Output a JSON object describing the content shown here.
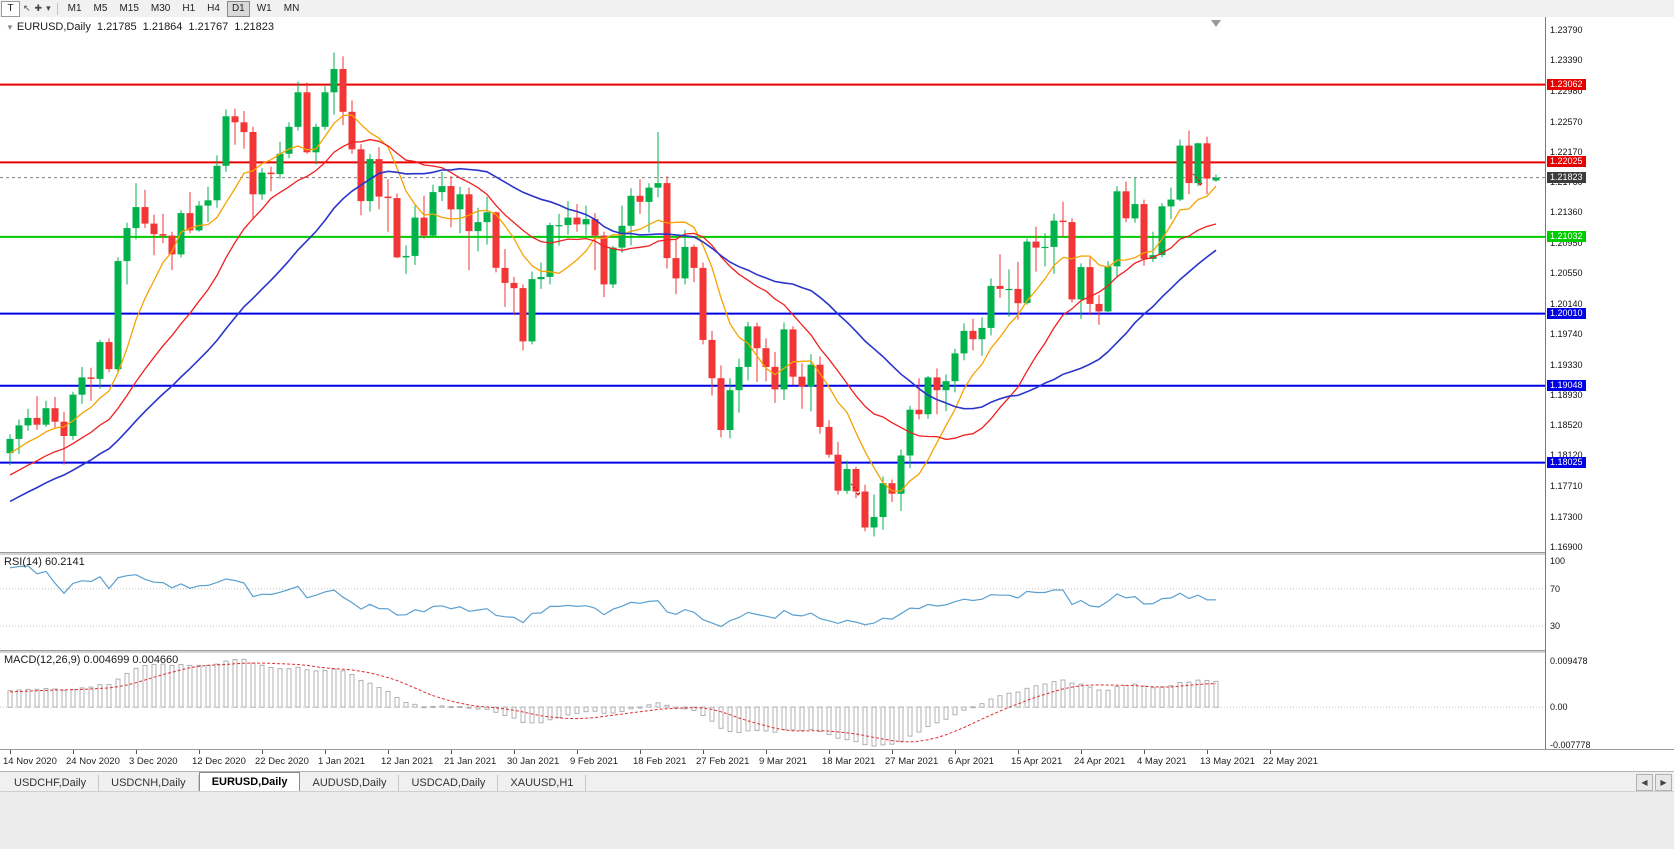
{
  "theme": {
    "up_color": "#00B14C",
    "down_color": "#F23535",
    "rsi_color": "#5BA0D0",
    "macd_signal": "#E03030",
    "macd_bar": "#A8A8A8",
    "current_line": "#808080",
    "current_box": "#3C3C3C"
  },
  "toolbar": {
    "tool_letter": "T",
    "cursor_glyph": "↖",
    "crosshair_glyph": "✚",
    "dropdown_glyph": "▾",
    "timeframes": [
      "M1",
      "M5",
      "M15",
      "M30",
      "H1",
      "H4",
      "D1",
      "W1",
      "MN"
    ],
    "active_timeframe": "D1"
  },
  "chart": {
    "header": {
      "collapse_glyph": "▼",
      "symbol": "EURUSD,Daily",
      "open": "1.21785",
      "high": "1.21864",
      "low": "1.21767",
      "close": "1.21823"
    },
    "shift_marker_glyph": "▽",
    "price_axis": [
      "1.23790",
      "1.23390",
      "1.22980",
      "1.22570",
      "1.22170",
      "1.21760",
      "1.21360",
      "1.20950",
      "1.20550",
      "1.20140",
      "1.19740",
      "1.19330",
      "1.18930",
      "1.18520",
      "1.18120",
      "1.17710",
      "1.17300",
      "1.16900"
    ],
    "current_price": {
      "label": "1.21823",
      "value": 1.21823
    },
    "date_axis": [
      "14 Nov 2020",
      "24 Nov 2020",
      "3 Dec 2020",
      "12 Dec 2020",
      "22 Dec 2020",
      "1 Jan 2021",
      "12 Jan 2021",
      "21 Jan 2021",
      "30 Jan 2021",
      "9 Feb 2021",
      "18 Feb 2021",
      "27 Feb 2021",
      "9 Mar 2021",
      "18 Mar 2021",
      "27 Mar 2021",
      "6 Apr 2021",
      "15 Apr 2021",
      "24 Apr 2021",
      "4 May 2021",
      "13 May 2021",
      "22 May 2021"
    ]
  },
  "rsi": {
    "title": "RSI(14) 60.2141",
    "scale": [
      {
        "label": "100",
        "value": 100
      },
      {
        "label": "70",
        "value": 70
      },
      {
        "label": "30",
        "value": 30
      }
    ],
    "levels": [
      70,
      30
    ]
  },
  "macd": {
    "title": "MACD(12,26,9) 0.004699 0.004660",
    "scale": [
      {
        "label": "0.009478",
        "value": 0.009478
      },
      {
        "label": "0.00",
        "value": 0
      },
      {
        "label": "-0.007778",
        "value": -0.007778
      }
    ]
  },
  "tabs": {
    "scroll_left": "◀",
    "scroll_right": "▶",
    "items": [
      {
        "label": "USDCHF,Daily",
        "active": false
      },
      {
        "label": "USDCNH,Daily",
        "active": false
      },
      {
        "label": "EURUSD,Daily",
        "active": true
      },
      {
        "label": "AUDUSD,Daily",
        "active": false
      },
      {
        "label": "USDCAD,Daily",
        "active": false
      },
      {
        "label": "XAUUSD,H1",
        "active": false
      }
    ]
  },
  "chart_data": {
    "type": "candlestick",
    "symbol": "EURUSD",
    "timeframe": "Daily",
    "price_range": [
      1.169,
      1.2379
    ],
    "horizontal_levels": [
      {
        "label": "1.23062",
        "price": 1.23062,
        "color": "#E60000"
      },
      {
        "label": "1.22025",
        "price": 1.22025,
        "color": "#E60000"
      },
      {
        "label": "1.21032",
        "price": 1.21032,
        "color": "#00CC00"
      },
      {
        "label": "1.20010",
        "price": 1.2001,
        "color": "#0000E6"
      },
      {
        "label": "1.19048",
        "price": 1.19048,
        "color": "#0000E6"
      },
      {
        "label": "1.18025",
        "price": 1.18025,
        "color": "#0000E6"
      }
    ],
    "moving_averages": [
      {
        "period": 8,
        "color": "#F5A300",
        "width": 1.3
      },
      {
        "period": 18,
        "color": "#F02020",
        "width": 1.3
      },
      {
        "period": 30,
        "color": "#2A35CC",
        "width": 1.6
      }
    ],
    "indicators": [
      {
        "name": "RSI",
        "period": 14,
        "value": 60.2141
      },
      {
        "name": "MACD",
        "params": "12,26,9",
        "values": [
          0.004699,
          0.00466
        ]
      }
    ],
    "trade_markers": [
      {
        "index": 94,
        "price": 1.1765
      },
      {
        "index": 132,
        "price": 1.2178
      }
    ],
    "ohlc": [
      [
        1.1815,
        1.184,
        1.1799,
        1.1834
      ],
      [
        1.1834,
        1.186,
        1.1814,
        1.1852
      ],
      [
        1.1852,
        1.1874,
        1.1845,
        1.1862
      ],
      [
        1.1862,
        1.1891,
        1.1846,
        1.1853
      ],
      [
        1.1853,
        1.1885,
        1.185,
        1.1875
      ],
      [
        1.1875,
        1.189,
        1.1849,
        1.1857
      ],
      [
        1.1857,
        1.187,
        1.18,
        1.1838
      ],
      [
        1.1838,
        1.1897,
        1.1833,
        1.1893
      ],
      [
        1.1893,
        1.193,
        1.1881,
        1.1916
      ],
      [
        1.1916,
        1.1929,
        1.1885,
        1.1914
      ],
      [
        1.1914,
        1.1966,
        1.1901,
        1.1963
      ],
      [
        1.1963,
        1.1968,
        1.1923,
        1.1927
      ],
      [
        1.1927,
        1.2076,
        1.1923,
        1.2071
      ],
      [
        1.2071,
        1.2122,
        1.204,
        1.2115
      ],
      [
        1.2115,
        1.2175,
        1.21,
        1.2143
      ],
      [
        1.2143,
        1.2166,
        1.2115,
        1.2121
      ],
      [
        1.2121,
        1.2133,
        1.2079,
        1.2107
      ],
      [
        1.2107,
        1.2134,
        1.2095,
        1.2105
      ],
      [
        1.2105,
        1.211,
        1.2059,
        1.208
      ],
      [
        1.208,
        1.2139,
        1.2076,
        1.2135
      ],
      [
        1.2135,
        1.2163,
        1.2108,
        1.2112
      ],
      [
        1.2112,
        1.2151,
        1.211,
        1.2145
      ],
      [
        1.2145,
        1.217,
        1.2123,
        1.2152
      ],
      [
        1.2152,
        1.2212,
        1.2142,
        1.2198
      ],
      [
        1.2198,
        1.2273,
        1.219,
        1.2264
      ],
      [
        1.2264,
        1.2274,
        1.2226,
        1.2256
      ],
      [
        1.2256,
        1.2271,
        1.2221,
        1.2243
      ],
      [
        1.2243,
        1.225,
        1.2129,
        1.216
      ],
      [
        1.216,
        1.2195,
        1.2153,
        1.2189
      ],
      [
        1.2189,
        1.2197,
        1.2164,
        1.2187
      ],
      [
        1.2187,
        1.223,
        1.2181,
        1.2214
      ],
      [
        1.2214,
        1.2256,
        1.2208,
        1.225
      ],
      [
        1.225,
        1.231,
        1.2245,
        1.2296
      ],
      [
        1.2296,
        1.2309,
        1.2214,
        1.2216
      ],
      [
        1.2216,
        1.2254,
        1.22,
        1.225
      ],
      [
        1.225,
        1.2304,
        1.2246,
        1.2296
      ],
      [
        1.2296,
        1.2349,
        1.2266,
        1.2327
      ],
      [
        1.2327,
        1.2344,
        1.2252,
        1.227
      ],
      [
        1.227,
        1.2285,
        1.2214,
        1.222
      ],
      [
        1.222,
        1.2227,
        1.2132,
        1.2151
      ],
      [
        1.2151,
        1.2214,
        1.2137,
        1.2207
      ],
      [
        1.2207,
        1.2223,
        1.214,
        1.2157
      ],
      [
        1.2157,
        1.218,
        1.211,
        1.2155
      ],
      [
        1.2155,
        1.2161,
        1.2075,
        1.2076
      ],
      [
        1.2076,
        1.2092,
        1.2054,
        1.2078
      ],
      [
        1.2078,
        1.2145,
        1.2066,
        1.2129
      ],
      [
        1.2129,
        1.2158,
        1.2101,
        1.2105
      ],
      [
        1.2105,
        1.2173,
        1.2104,
        1.2163
      ],
      [
        1.2163,
        1.219,
        1.2151,
        1.2171
      ],
      [
        1.2171,
        1.2184,
        1.2116,
        1.214
      ],
      [
        1.214,
        1.217,
        1.2108,
        1.216
      ],
      [
        1.216,
        1.2169,
        1.2059,
        1.2111
      ],
      [
        1.2111,
        1.2142,
        1.2084,
        1.2123
      ],
      [
        1.2123,
        1.2157,
        1.2093,
        1.2136
      ],
      [
        1.2136,
        1.2137,
        1.2056,
        1.2062
      ],
      [
        1.2062,
        1.2087,
        1.201,
        1.2042
      ],
      [
        1.2042,
        1.205,
        1.1999,
        1.2035
      ],
      [
        1.2035,
        1.204,
        1.1952,
        1.1964
      ],
      [
        1.1964,
        1.2057,
        1.196,
        1.2047
      ],
      [
        1.2047,
        1.2069,
        1.2034,
        1.205
      ],
      [
        1.205,
        1.2122,
        1.204,
        1.2119
      ],
      [
        1.2119,
        1.2134,
        1.2092,
        1.2119
      ],
      [
        1.2119,
        1.2151,
        1.2106,
        1.2129
      ],
      [
        1.2129,
        1.2147,
        1.211,
        1.212
      ],
      [
        1.212,
        1.2145,
        1.2105,
        1.2127
      ],
      [
        1.2127,
        1.2135,
        1.2059,
        1.2105
      ],
      [
        1.2105,
        1.211,
        1.2023,
        1.204
      ],
      [
        1.204,
        1.2091,
        1.2035,
        1.2089
      ],
      [
        1.2089,
        1.2145,
        1.2082,
        1.2118
      ],
      [
        1.2118,
        1.2168,
        1.2092,
        1.2158
      ],
      [
        1.2158,
        1.218,
        1.2134,
        1.215
      ],
      [
        1.215,
        1.2175,
        1.2109,
        1.2169
      ],
      [
        1.2169,
        1.2243,
        1.2156,
        1.2175
      ],
      [
        1.2175,
        1.2184,
        1.2061,
        1.2075
      ],
      [
        1.2075,
        1.2101,
        1.2027,
        1.2048
      ],
      [
        1.2048,
        1.2113,
        1.204,
        1.209
      ],
      [
        1.209,
        1.2093,
        1.2043,
        1.2062
      ],
      [
        1.2062,
        1.2069,
        1.196,
        1.1966
      ],
      [
        1.1966,
        1.1978,
        1.1892,
        1.1915
      ],
      [
        1.1915,
        1.1932,
        1.1836,
        1.1846
      ],
      [
        1.1846,
        1.1915,
        1.1835,
        1.1899
      ],
      [
        1.1899,
        1.1941,
        1.1869,
        1.193
      ],
      [
        1.193,
        1.199,
        1.1912,
        1.1984
      ],
      [
        1.1984,
        1.1989,
        1.191,
        1.1955
      ],
      [
        1.1955,
        1.1968,
        1.1911,
        1.193
      ],
      [
        1.193,
        1.195,
        1.1882,
        1.19
      ],
      [
        1.19,
        1.1989,
        1.1886,
        1.198
      ],
      [
        1.198,
        1.1984,
        1.1906,
        1.1917
      ],
      [
        1.1917,
        1.1935,
        1.1874,
        1.1904
      ],
      [
        1.1904,
        1.1947,
        1.1871,
        1.1933
      ],
      [
        1.1933,
        1.1944,
        1.1841,
        1.185
      ],
      [
        1.185,
        1.1859,
        1.1809,
        1.1813
      ],
      [
        1.1813,
        1.183,
        1.176,
        1.1765
      ],
      [
        1.1765,
        1.1805,
        1.1761,
        1.1794
      ],
      [
        1.1794,
        1.1797,
        1.1755,
        1.1764
      ],
      [
        1.1764,
        1.1773,
        1.1711,
        1.1716
      ],
      [
        1.1716,
        1.176,
        1.1704,
        1.173
      ],
      [
        1.173,
        1.1784,
        1.1713,
        1.1775
      ],
      [
        1.1775,
        1.178,
        1.175,
        1.1761
      ],
      [
        1.1761,
        1.182,
        1.1738,
        1.1812
      ],
      [
        1.1812,
        1.1878,
        1.1795,
        1.1873
      ],
      [
        1.1873,
        1.1915,
        1.186,
        1.1867
      ],
      [
        1.1867,
        1.1918,
        1.1861,
        1.1916
      ],
      [
        1.1916,
        1.1928,
        1.1867,
        1.1899
      ],
      [
        1.1899,
        1.192,
        1.1871,
        1.1911
      ],
      [
        1.1911,
        1.1954,
        1.1896,
        1.1948
      ],
      [
        1.1948,
        1.1988,
        1.1939,
        1.1978
      ],
      [
        1.1978,
        1.1994,
        1.1952,
        1.1967
      ],
      [
        1.1967,
        1.1996,
        1.1945,
        1.1982
      ],
      [
        1.1982,
        1.2048,
        1.1972,
        1.2038
      ],
      [
        1.2038,
        1.208,
        1.2022,
        1.2034
      ],
      [
        1.2034,
        1.206,
        1.1997,
        1.2034
      ],
      [
        1.2034,
        1.207,
        1.1993,
        1.2015
      ],
      [
        1.2015,
        1.2101,
        1.2013,
        1.2097
      ],
      [
        1.2097,
        1.2117,
        1.2057,
        1.2089
      ],
      [
        1.2089,
        1.2108,
        1.2064,
        1.209
      ],
      [
        1.209,
        1.2134,
        1.2054,
        1.2125
      ],
      [
        1.2125,
        1.215,
        1.2103,
        1.2123
      ],
      [
        1.2123,
        1.2128,
        1.2016,
        1.202
      ],
      [
        1.202,
        1.2068,
        1.1994,
        1.2063
      ],
      [
        1.2063,
        1.2076,
        1.1999,
        1.2014
      ],
      [
        1.2014,
        1.2026,
        1.1986,
        1.2004
      ],
      [
        1.2004,
        1.2071,
        1.2003,
        1.2064
      ],
      [
        1.2064,
        1.2171,
        1.2051,
        1.2164
      ],
      [
        1.2164,
        1.2177,
        1.2123,
        1.2128
      ],
      [
        1.2128,
        1.2182,
        1.2122,
        1.2147
      ],
      [
        1.2147,
        1.2153,
        1.2065,
        1.2074
      ],
      [
        1.2074,
        1.211,
        1.207,
        1.2079
      ],
      [
        1.2079,
        1.2148,
        1.2076,
        1.2144
      ],
      [
        1.2144,
        1.2169,
        1.2127,
        1.2153
      ],
      [
        1.2153,
        1.2233,
        1.2151,
        1.2225
      ],
      [
        1.2225,
        1.2245,
        1.216,
        1.2175
      ],
      [
        1.2175,
        1.2229,
        1.2171,
        1.2228
      ],
      [
        1.2228,
        1.2237,
        1.216,
        1.2181
      ],
      [
        1.21785,
        1.21864,
        1.21767,
        1.21823
      ]
    ]
  }
}
